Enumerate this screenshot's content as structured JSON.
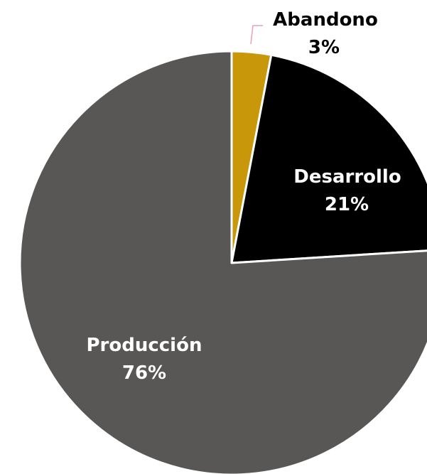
{
  "chart_data": {
    "type": "pie",
    "start_angle_deg": 0,
    "direction": "clockwise",
    "slices": [
      {
        "label": "Abandono",
        "value": 3,
        "value_label": "3%",
        "color": "#C9980A",
        "label_color": "#000000",
        "leader_color": "#E8A0BE"
      },
      {
        "label": "Desarrollo",
        "value": 21,
        "value_label": "21%",
        "color": "#000000",
        "label_color": "#FFFFFF"
      },
      {
        "label": "Producción",
        "value": 76,
        "value_label": "76%",
        "color": "#595755",
        "label_color": "#FFFFFF"
      }
    ],
    "slice_border_color": "#FFFFFF"
  }
}
